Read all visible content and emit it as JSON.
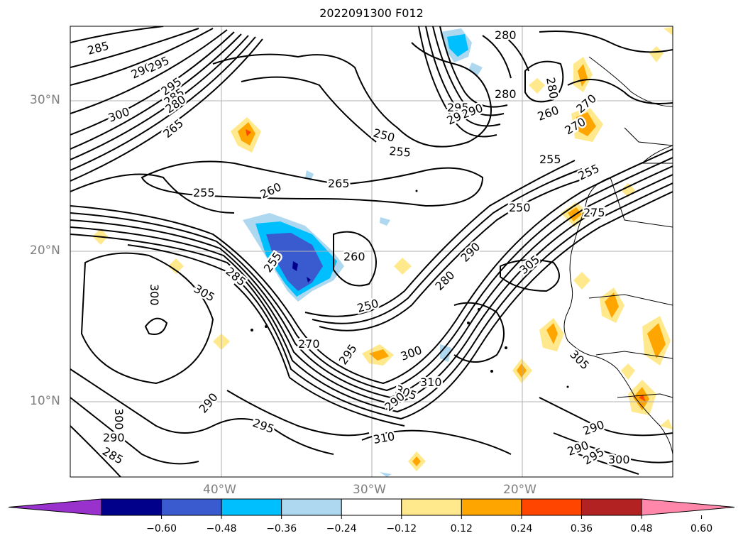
{
  "title": "2022091300 F012",
  "lat_labels": [
    "30°N",
    "20°N",
    "10°N"
  ],
  "lon_labels": [
    "40°W",
    "30°W",
    "20°W"
  ],
  "contour_labels": [
    "285",
    "290",
    "295",
    "295",
    "285",
    "280",
    "300",
    "265",
    "255",
    "260",
    "265",
    "250",
    "255",
    "280",
    "295",
    "280",
    "295",
    "290",
    "280",
    "270",
    "260",
    "270",
    "255",
    "255",
    "250",
    "275",
    "260",
    "305",
    "300",
    "285",
    "255",
    "250",
    "280",
    "290",
    "305",
    "270",
    "295",
    "300",
    "310",
    "305",
    "290",
    "310",
    "300",
    "290",
    "295",
    "290",
    "285",
    "290",
    "290",
    "300",
    "305",
    "295"
  ],
  "colorbar": {
    "ticks": [
      "−0.60",
      "−0.48",
      "−0.36",
      "−0.24",
      "−0.12",
      "0.12",
      "0.24",
      "0.36",
      "0.48",
      "0.60"
    ],
    "colors": [
      "#9932cc",
      "#00008b",
      "#3a5bcf",
      "#00bfff",
      "#add8f0",
      "#ffffff",
      "#ffe98c",
      "#ffa500",
      "#ff4500",
      "#b22222",
      "#ff88aa"
    ]
  }
}
